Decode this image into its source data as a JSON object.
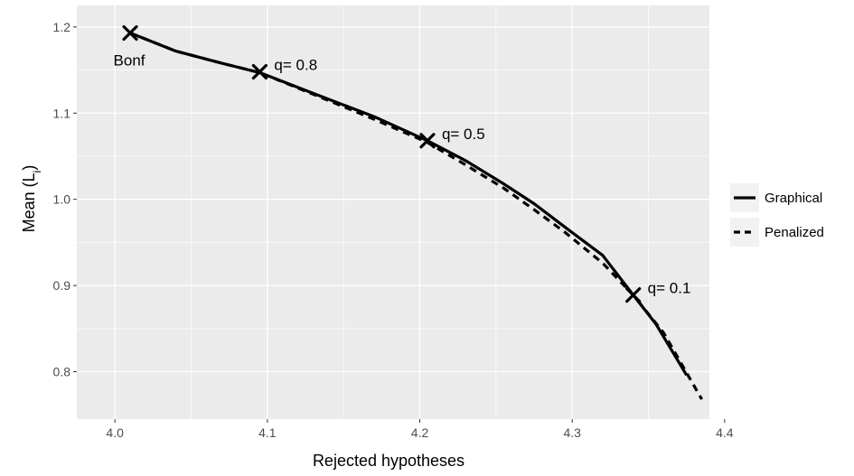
{
  "chart_data": {
    "type": "line",
    "xlabel": "Rejected hypotheses",
    "ylabel_main": "Mean (L",
    "ylabel_sub": "i",
    "ylabel_close": ")",
    "xlim": [
      3.975,
      4.39
    ],
    "ylim": [
      0.745,
      1.225
    ],
    "x_ticks": [
      4.0,
      4.1,
      4.2,
      4.3,
      4.4
    ],
    "x_tick_labels": [
      "4.0",
      "4.1",
      "4.2",
      "4.3",
      "4.4"
    ],
    "y_ticks": [
      0.8,
      0.9,
      1.0,
      1.1,
      1.2
    ],
    "y_tick_labels": [
      "0.8",
      "0.9",
      "1.0",
      "1.1",
      "1.2"
    ],
    "grid": true,
    "legend_position": "right",
    "panel_color": "#ebebeb",
    "series": [
      {
        "name": "Graphical",
        "style": "solid",
        "color": "#000000",
        "x": [
          4.01,
          4.04,
          4.07,
          4.095,
          4.13,
          4.17,
          4.205,
          4.23,
          4.255,
          4.275,
          4.295,
          4.32,
          4.34,
          4.355,
          4.375
        ],
        "y": [
          1.193,
          1.172,
          1.158,
          1.147,
          1.123,
          1.096,
          1.068,
          1.045,
          1.018,
          0.995,
          0.968,
          0.935,
          0.889,
          0.855,
          0.796
        ]
      },
      {
        "name": "Penalized",
        "style": "dashed",
        "color": "#000000",
        "x": [
          4.01,
          4.04,
          4.07,
          4.095,
          4.13,
          4.17,
          4.205,
          4.23,
          4.255,
          4.275,
          4.295,
          4.32,
          4.34,
          4.36,
          4.385
        ],
        "y": [
          1.193,
          1.172,
          1.158,
          1.147,
          1.122,
          1.093,
          1.066,
          1.04,
          1.013,
          0.988,
          0.962,
          0.926,
          0.889,
          0.845,
          0.768
        ]
      }
    ],
    "markers": [
      {
        "x": 4.01,
        "y": 1.193,
        "label": "Bonf"
      },
      {
        "x": 4.095,
        "y": 1.148,
        "label": "q= 0.8"
      },
      {
        "x": 4.205,
        "y": 1.068,
        "label": "q= 0.5"
      },
      {
        "x": 4.34,
        "y": 0.889,
        "label": "q= 0.1"
      }
    ]
  }
}
